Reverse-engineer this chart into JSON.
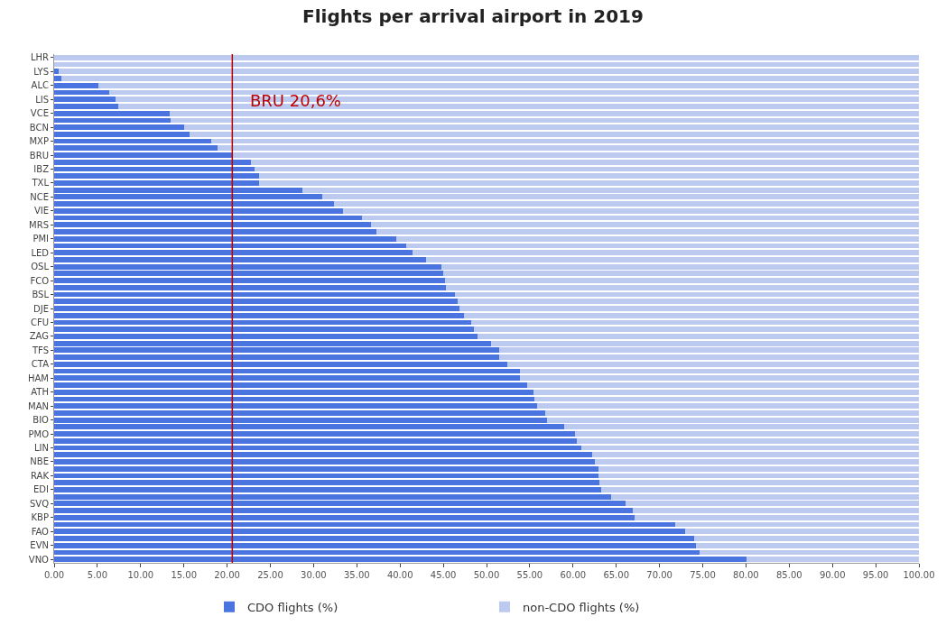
{
  "chart_data": {
    "type": "bar",
    "orientation": "horizontal",
    "stacked": true,
    "title": "Flights per arrival airport in 2019",
    "categories": [
      "LHR",
      null,
      "LYS",
      null,
      "ALC",
      null,
      "LIS",
      null,
      "VCE",
      null,
      "BCN",
      null,
      "MXP",
      null,
      "BRU",
      null,
      "IBZ",
      null,
      "TXL",
      null,
      "NCE",
      null,
      "VIE",
      null,
      "MRS",
      null,
      "PMI",
      null,
      "LED",
      null,
      "OSL",
      null,
      "FCO",
      null,
      "BSL",
      null,
      "DJE",
      null,
      "CFU",
      null,
      "ZAG",
      null,
      "TFS",
      null,
      "CTA",
      null,
      "HAM",
      null,
      "ATH",
      null,
      "MAN",
      null,
      "BIO",
      null,
      "PMO",
      null,
      "LIN",
      null,
      "NBE",
      null,
      "RAK",
      null,
      "EDI",
      null,
      "SVQ",
      null,
      "KBP",
      null,
      "FAO",
      null,
      "EVN",
      null,
      "VNO"
    ],
    "series": [
      {
        "name": "CDO flights (%)",
        "color": "#4a74df",
        "values": [
          0,
          0,
          0.5,
          0.8,
          5.1,
          6.4,
          7.1,
          7.4,
          13.4,
          13.5,
          15.0,
          15.7,
          18.2,
          18.9,
          20.6,
          22.8,
          23.2,
          23.7,
          23.7,
          28.7,
          31.0,
          32.4,
          33.4,
          35.6,
          36.6,
          37.3,
          39.6,
          40.7,
          41.4,
          43.0,
          44.8,
          45.0,
          45.2,
          45.3,
          46.3,
          46.7,
          46.9,
          47.4,
          48.2,
          48.5,
          49.0,
          50.5,
          51.5,
          51.5,
          52.4,
          53.9,
          53.9,
          54.7,
          55.4,
          55.5,
          55.8,
          56.8,
          57.0,
          59.0,
          60.2,
          60.4,
          61.0,
          62.2,
          62.5,
          62.9,
          62.9,
          63.0,
          63.3,
          64.4,
          66.1,
          66.9,
          67.1,
          71.8,
          73.0,
          74.0,
          74.2,
          74.6,
          80.1
        ]
      },
      {
        "name": "non-CDO flights (%)",
        "color": "#bccaef",
        "values": [
          100,
          100,
          99.5,
          99.2,
          94.9,
          93.6,
          92.9,
          92.6,
          86.6,
          86.5,
          85.0,
          84.3,
          81.8,
          81.1,
          79.4,
          77.2,
          76.8,
          76.3,
          76.3,
          71.3,
          69.0,
          67.6,
          66.6,
          64.4,
          63.4,
          62.7,
          60.4,
          59.3,
          58.6,
          57.0,
          55.2,
          55.0,
          54.8,
          54.7,
          53.7,
          53.3,
          53.1,
          52.6,
          51.8,
          51.5,
          51.0,
          49.5,
          48.5,
          48.5,
          47.6,
          46.1,
          46.1,
          45.3,
          44.6,
          44.5,
          44.2,
          43.2,
          43.0,
          41.0,
          39.8,
          39.6,
          39.0,
          37.8,
          37.5,
          37.1,
          37.1,
          37.0,
          36.7,
          35.6,
          33.9,
          33.1,
          32.9,
          28.2,
          27.0,
          26.0,
          25.8,
          25.4,
          19.9
        ]
      }
    ],
    "xlim": [
      0,
      100
    ],
    "xticks": [
      {
        "value": 0,
        "label": "0.00"
      },
      {
        "value": 5,
        "label": "5.00"
      },
      {
        "value": 10,
        "label": "10.00"
      },
      {
        "value": 15,
        "label": "15.00"
      },
      {
        "value": 20,
        "label": "20.00"
      },
      {
        "value": 25,
        "label": "25.00"
      },
      {
        "value": 30,
        "label": "30.00"
      },
      {
        "value": 35,
        "label": "35.00"
      },
      {
        "value": 40,
        "label": "40.00"
      },
      {
        "value": 45,
        "label": "45.00"
      },
      {
        "value": 50,
        "label": "50.00"
      },
      {
        "value": 55,
        "label": "55.00"
      },
      {
        "value": 60,
        "label": "60.00"
      },
      {
        "value": 65,
        "label": "65.00"
      },
      {
        "value": 70,
        "label": "70.00"
      },
      {
        "value": 75,
        "label": "75.00"
      },
      {
        "value": 80,
        "label": "80.00"
      },
      {
        "value": 85,
        "label": "85.00"
      },
      {
        "value": 90,
        "label": "90.00"
      },
      {
        "value": 95,
        "label": "95.00"
      },
      {
        "value": 100,
        "label": "100.00"
      }
    ],
    "ref_lines": [
      {
        "axis": "x",
        "value": 20.6,
        "label": "BRU 20,6%",
        "color": "#c00000"
      }
    ],
    "legend": "bottom"
  }
}
